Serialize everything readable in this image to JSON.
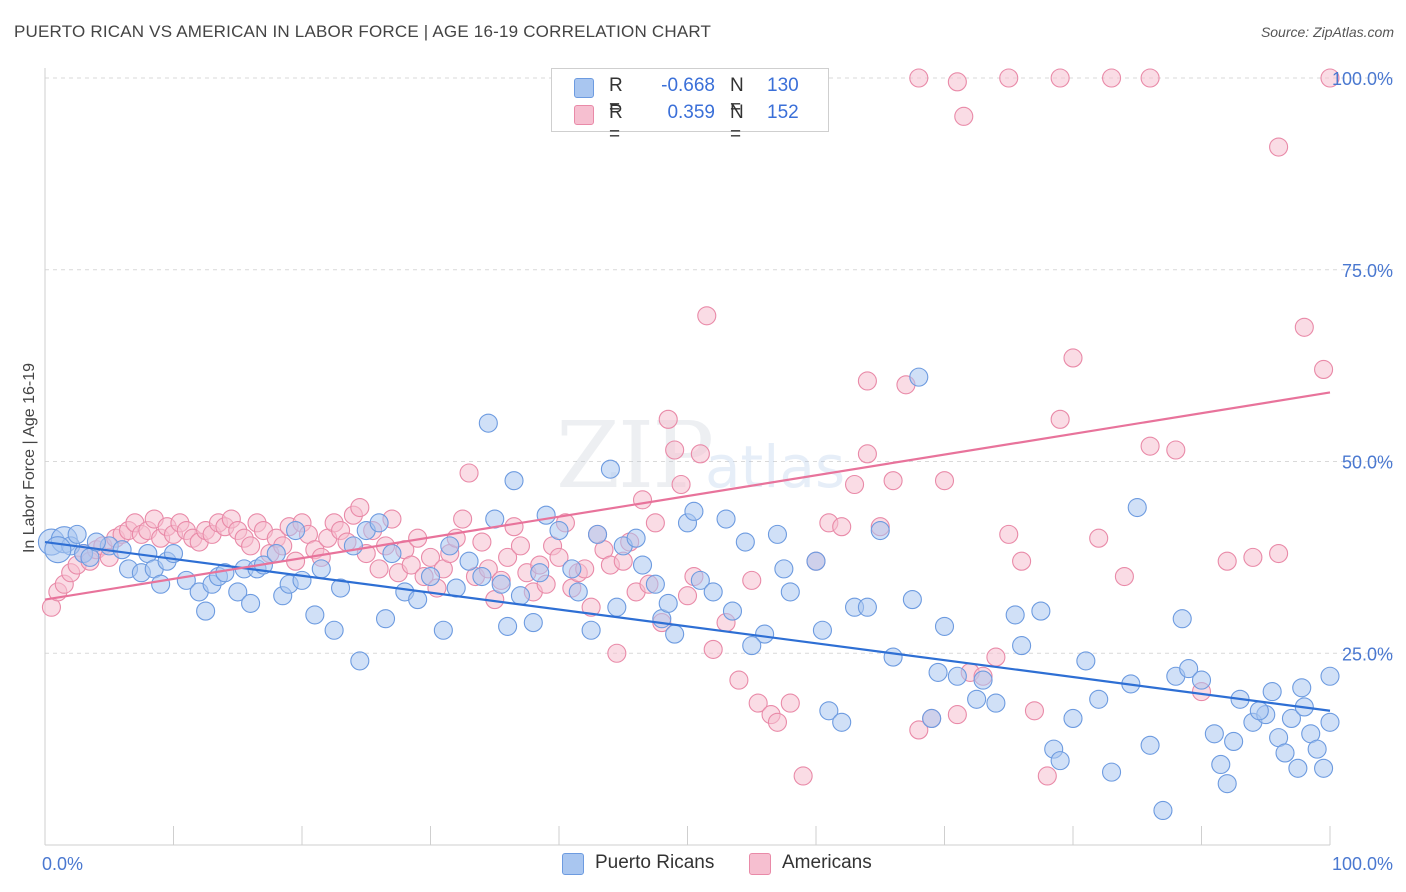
{
  "title": "PUERTO RICAN VS AMERICAN IN LABOR FORCE | AGE 16-19 CORRELATION CHART",
  "source": "Source: ZipAtlas.com",
  "watermark": {
    "zip": "ZIP",
    "atlas": "atlas"
  },
  "legend": {
    "rows": [
      {
        "r_label": "R =",
        "r_value": "-0.668",
        "n_label": "N =",
        "n_value": "130",
        "color": "#a9c6f0",
        "stroke": "#6d9be0"
      },
      {
        "r_label": "R =",
        "r_value": "0.359",
        "n_label": "N =",
        "n_value": "152",
        "color": "#f6bfd0",
        "stroke": "#e98aa8"
      }
    ]
  },
  "bottom_legend": [
    {
      "label": "Puerto Ricans",
      "color": "#a9c6f0",
      "stroke": "#6d9be0"
    },
    {
      "label": "Americans",
      "color": "#f6bfd0",
      "stroke": "#e98aa8"
    }
  ],
  "chart_data": {
    "type": "scatter",
    "title": "PUERTO RICAN VS AMERICAN IN LABOR FORCE | AGE 16-19 CORRELATION CHART",
    "xlabel": "",
    "ylabel": "In Labor Force | Age 16-19",
    "xlim": [
      0,
      100
    ],
    "ylim": [
      0,
      104
    ],
    "x_tick_labels": [
      "0.0%",
      "100.0%"
    ],
    "y_ticks": [
      25,
      50,
      75,
      100
    ],
    "y_tick_labels": [
      "25.0%",
      "50.0%",
      "75.0%",
      "100.0%"
    ],
    "grid": true,
    "legend_position": "top-center",
    "series": [
      {
        "name": "Puerto Ricans",
        "color": "#a9c6f0",
        "edge": "#6d9be0",
        "trend_color": "#2e6fd4",
        "trend": {
          "x": [
            0,
            100
          ],
          "y": [
            39.5,
            17.5
          ]
        },
        "points": [
          [
            0.5,
            39.5
          ],
          [
            1.5,
            39.8
          ],
          [
            2.0,
            39.0
          ],
          [
            3.0,
            38.0
          ],
          [
            3.5,
            37.5
          ],
          [
            5.0,
            39.0
          ],
          [
            6.0,
            38.5
          ],
          [
            6.5,
            36.0
          ],
          [
            7.5,
            35.5
          ],
          [
            8.0,
            38.0
          ],
          [
            8.5,
            36.0
          ],
          [
            9.0,
            34.0
          ],
          [
            9.5,
            37.0
          ],
          [
            10.0,
            38.0
          ],
          [
            11.0,
            34.5
          ],
          [
            12.0,
            33.0
          ],
          [
            13.0,
            34.0
          ],
          [
            13.5,
            35.0
          ],
          [
            14.0,
            35.5
          ],
          [
            15.0,
            33.0
          ],
          [
            15.5,
            36.0
          ],
          [
            16.5,
            36.0
          ],
          [
            17.0,
            36.5
          ],
          [
            18.0,
            38.0
          ],
          [
            18.5,
            32.5
          ],
          [
            19.0,
            34.0
          ],
          [
            20.0,
            34.5
          ],
          [
            21.0,
            30.0
          ],
          [
            21.5,
            36.0
          ],
          [
            22.5,
            28.0
          ],
          [
            23.0,
            33.5
          ],
          [
            24.0,
            39.0
          ],
          [
            24.5,
            24.0
          ],
          [
            25.0,
            41.0
          ],
          [
            26.0,
            42.0
          ],
          [
            27.0,
            38.0
          ],
          [
            28.0,
            33.0
          ],
          [
            29.0,
            32.0
          ],
          [
            30.0,
            35.0
          ],
          [
            31.0,
            28.0
          ],
          [
            32.0,
            33.5
          ],
          [
            33.0,
            37.0
          ],
          [
            34.0,
            35.0
          ],
          [
            35.0,
            42.5
          ],
          [
            35.5,
            34.0
          ],
          [
            36.0,
            28.5
          ],
          [
            37.0,
            32.5
          ],
          [
            38.0,
            29.0
          ],
          [
            38.5,
            35.5
          ],
          [
            39.0,
            43.0
          ],
          [
            40.0,
            41.0
          ],
          [
            41.0,
            36.0
          ],
          [
            41.5,
            33.0
          ],
          [
            42.5,
            28.0
          ],
          [
            43.0,
            40.5
          ],
          [
            44.0,
            49.0
          ],
          [
            45.0,
            39.0
          ],
          [
            46.0,
            40.0
          ],
          [
            46.5,
            36.5
          ],
          [
            47.5,
            34.0
          ],
          [
            48.0,
            29.5
          ],
          [
            49.0,
            27.5
          ],
          [
            50.0,
            42.0
          ],
          [
            51.0,
            34.5
          ],
          [
            52.0,
            33.0
          ],
          [
            53.0,
            42.5
          ],
          [
            54.5,
            39.5
          ],
          [
            56.0,
            27.5
          ],
          [
            57.0,
            40.5
          ],
          [
            58.0,
            33.0
          ],
          [
            60.0,
            37.0
          ],
          [
            61.0,
            17.5
          ],
          [
            62.0,
            16.0
          ],
          [
            63.0,
            31.0
          ],
          [
            65.0,
            41.0
          ],
          [
            66.0,
            24.5
          ],
          [
            67.5,
            32.0
          ],
          [
            69.0,
            16.5
          ],
          [
            70.0,
            28.5
          ],
          [
            71.0,
            22.0
          ],
          [
            72.5,
            19.0
          ],
          [
            74.0,
            18.5
          ],
          [
            75.5,
            30.0
          ],
          [
            77.5,
            30.5
          ],
          [
            78.5,
            12.5
          ],
          [
            80.0,
            16.5
          ],
          [
            81.0,
            24.0
          ],
          [
            82.0,
            19.0
          ],
          [
            83.0,
            9.5
          ],
          [
            84.5,
            21.0
          ],
          [
            86.0,
            13.0
          ],
          [
            87.0,
            4.5
          ],
          [
            88.0,
            22.0
          ],
          [
            89.0,
            23.0
          ],
          [
            90.0,
            21.5
          ],
          [
            91.0,
            14.5
          ],
          [
            91.5,
            10.5
          ],
          [
            92.5,
            13.5
          ],
          [
            93.0,
            19.0
          ],
          [
            94.0,
            16.0
          ],
          [
            95.0,
            17.0
          ],
          [
            95.5,
            20.0
          ],
          [
            96.0,
            14.0
          ],
          [
            96.5,
            12.0
          ],
          [
            97.0,
            16.5
          ],
          [
            97.5,
            10.0
          ],
          [
            98.0,
            18.0
          ],
          [
            98.5,
            14.5
          ],
          [
            99.0,
            12.5
          ],
          [
            99.5,
            10.0
          ],
          [
            100.0,
            22.0
          ],
          [
            100.0,
            16.0
          ],
          [
            1.0,
            38.5
          ],
          [
            2.5,
            40.5
          ],
          [
            4.0,
            39.5
          ],
          [
            12.5,
            30.5
          ],
          [
            16.0,
            31.5
          ],
          [
            19.5,
            41.0
          ],
          [
            26.5,
            29.5
          ],
          [
            31.5,
            39.0
          ],
          [
            34.5,
            55.0
          ],
          [
            36.5,
            47.5
          ],
          [
            44.5,
            31.0
          ],
          [
            48.5,
            31.5
          ],
          [
            53.5,
            30.5
          ],
          [
            57.5,
            36.0
          ],
          [
            64.0,
            31.0
          ],
          [
            68.0,
            61.0
          ],
          [
            69.5,
            22.5
          ],
          [
            73.0,
            21.5
          ],
          [
            76.0,
            26.0
          ],
          [
            79.0,
            11.0
          ],
          [
            85.0,
            44.0
          ],
          [
            88.5,
            29.5
          ],
          [
            92.0,
            8.0
          ],
          [
            94.5,
            17.5
          ],
          [
            97.8,
            20.5
          ],
          [
            50.5,
            43.5
          ],
          [
            55.0,
            26.0
          ],
          [
            60.5,
            28.0
          ]
        ]
      },
      {
        "name": "Americans",
        "color": "#f6bfd0",
        "edge": "#e98aa8",
        "trend_color": "#e8739b",
        "trend": {
          "x": [
            0,
            100
          ],
          "y": [
            32.0,
            59.0
          ]
        },
        "points": [
          [
            0.5,
            31.0
          ],
          [
            1.0,
            33.0
          ],
          [
            1.5,
            34.0
          ],
          [
            2.0,
            35.5
          ],
          [
            2.5,
            36.5
          ],
          [
            3.0,
            38.0
          ],
          [
            3.5,
            37.0
          ],
          [
            4.0,
            38.5
          ],
          [
            4.5,
            39.0
          ],
          [
            5.0,
            37.5
          ],
          [
            5.5,
            40.0
          ],
          [
            6.0,
            40.5
          ],
          [
            6.5,
            41.0
          ],
          [
            7.0,
            42.0
          ],
          [
            7.5,
            40.5
          ],
          [
            8.0,
            41.0
          ],
          [
            8.5,
            42.5
          ],
          [
            9.0,
            40.0
          ],
          [
            9.5,
            41.5
          ],
          [
            10.0,
            40.5
          ],
          [
            10.5,
            42.0
          ],
          [
            11.0,
            41.0
          ],
          [
            11.5,
            40.0
          ],
          [
            12.0,
            39.5
          ],
          [
            12.5,
            41.0
          ],
          [
            13.0,
            40.5
          ],
          [
            13.5,
            42.0
          ],
          [
            14.0,
            41.5
          ],
          [
            14.5,
            42.5
          ],
          [
            15.0,
            41.0
          ],
          [
            15.5,
            40.0
          ],
          [
            16.0,
            39.0
          ],
          [
            16.5,
            42.0
          ],
          [
            17.0,
            41.0
          ],
          [
            17.5,
            38.0
          ],
          [
            18.0,
            40.0
          ],
          [
            18.5,
            39.0
          ],
          [
            19.0,
            41.5
          ],
          [
            19.5,
            37.0
          ],
          [
            20.0,
            42.0
          ],
          [
            20.5,
            40.5
          ],
          [
            21.0,
            38.5
          ],
          [
            21.5,
            37.5
          ],
          [
            22.0,
            40.0
          ],
          [
            22.5,
            42.0
          ],
          [
            23.0,
            41.0
          ],
          [
            23.5,
            39.5
          ],
          [
            24.0,
            43.0
          ],
          [
            24.5,
            44.0
          ],
          [
            25.0,
            38.0
          ],
          [
            25.5,
            41.0
          ],
          [
            26.0,
            36.0
          ],
          [
            26.5,
            39.0
          ],
          [
            27.0,
            42.5
          ],
          [
            27.5,
            35.5
          ],
          [
            28.0,
            38.5
          ],
          [
            28.5,
            36.5
          ],
          [
            29.0,
            40.0
          ],
          [
            29.5,
            35.0
          ],
          [
            30.0,
            37.5
          ],
          [
            30.5,
            33.5
          ],
          [
            31.0,
            36.0
          ],
          [
            31.5,
            38.0
          ],
          [
            32.0,
            40.0
          ],
          [
            32.5,
            42.5
          ],
          [
            33.0,
            48.5
          ],
          [
            33.5,
            35.0
          ],
          [
            34.0,
            39.5
          ],
          [
            34.5,
            36.0
          ],
          [
            35.0,
            32.0
          ],
          [
            35.5,
            34.5
          ],
          [
            36.0,
            37.5
          ],
          [
            36.5,
            41.5
          ],
          [
            37.0,
            39.0
          ],
          [
            37.5,
            35.5
          ],
          [
            38.0,
            33.0
          ],
          [
            38.5,
            36.5
          ],
          [
            39.0,
            34.0
          ],
          [
            39.5,
            39.0
          ],
          [
            40.0,
            37.5
          ],
          [
            40.5,
            42.0
          ],
          [
            41.0,
            33.5
          ],
          [
            41.5,
            35.5
          ],
          [
            42.0,
            36.0
          ],
          [
            42.5,
            31.0
          ],
          [
            43.0,
            40.5
          ],
          [
            43.5,
            38.5
          ],
          [
            44.0,
            36.5
          ],
          [
            44.5,
            25.0
          ],
          [
            45.0,
            37.0
          ],
          [
            45.5,
            39.5
          ],
          [
            46.0,
            33.0
          ],
          [
            46.5,
            45.0
          ],
          [
            47.0,
            34.0
          ],
          [
            47.5,
            42.0
          ],
          [
            48.0,
            29.0
          ],
          [
            48.5,
            55.5
          ],
          [
            49.0,
            51.5
          ],
          [
            49.5,
            47.0
          ],
          [
            50.0,
            32.5
          ],
          [
            50.5,
            35.0
          ],
          [
            51.0,
            51.0
          ],
          [
            52.0,
            25.5
          ],
          [
            53.0,
            29.0
          ],
          [
            54.0,
            21.5
          ],
          [
            55.0,
            34.5
          ],
          [
            55.5,
            18.5
          ],
          [
            56.5,
            17.0
          ],
          [
            57.0,
            16.0
          ],
          [
            58.0,
            18.5
          ],
          [
            59.0,
            9.0
          ],
          [
            60.0,
            37.0
          ],
          [
            61.0,
            42.0
          ],
          [
            62.0,
            41.5
          ],
          [
            63.0,
            47.0
          ],
          [
            64.0,
            51.0
          ],
          [
            65.0,
            41.5
          ],
          [
            66.0,
            47.5
          ],
          [
            67.0,
            60.0
          ],
          [
            68.0,
            15.0
          ],
          [
            69.0,
            16.5
          ],
          [
            70.0,
            47.5
          ],
          [
            71.0,
            17.0
          ],
          [
            72.0,
            22.5
          ],
          [
            73.0,
            22.0
          ],
          [
            74.0,
            24.5
          ],
          [
            75.0,
            40.5
          ],
          [
            76.0,
            37.0
          ],
          [
            77.0,
            17.5
          ],
          [
            78.0,
            9.0
          ],
          [
            79.0,
            55.5
          ],
          [
            80.0,
            63.5
          ],
          [
            82.0,
            40.0
          ],
          [
            84.0,
            35.0
          ],
          [
            86.0,
            52.0
          ],
          [
            88.0,
            51.5
          ],
          [
            90.0,
            20.0
          ],
          [
            92.0,
            37.0
          ],
          [
            94.0,
            37.5
          ],
          [
            96.0,
            38.0
          ],
          [
            98.0,
            67.5
          ],
          [
            99.5,
            62.0
          ],
          [
            100.0,
            100.0
          ],
          [
            68.0,
            100.0
          ],
          [
            71.0,
            99.5
          ],
          [
            75.0,
            100.0
          ],
          [
            79.0,
            100.0
          ],
          [
            83.0,
            100.0
          ],
          [
            86.0,
            100.0
          ],
          [
            96.0,
            91.0
          ],
          [
            71.5,
            95.0
          ],
          [
            64.0,
            60.5
          ],
          [
            51.5,
            69.0
          ]
        ]
      }
    ]
  }
}
